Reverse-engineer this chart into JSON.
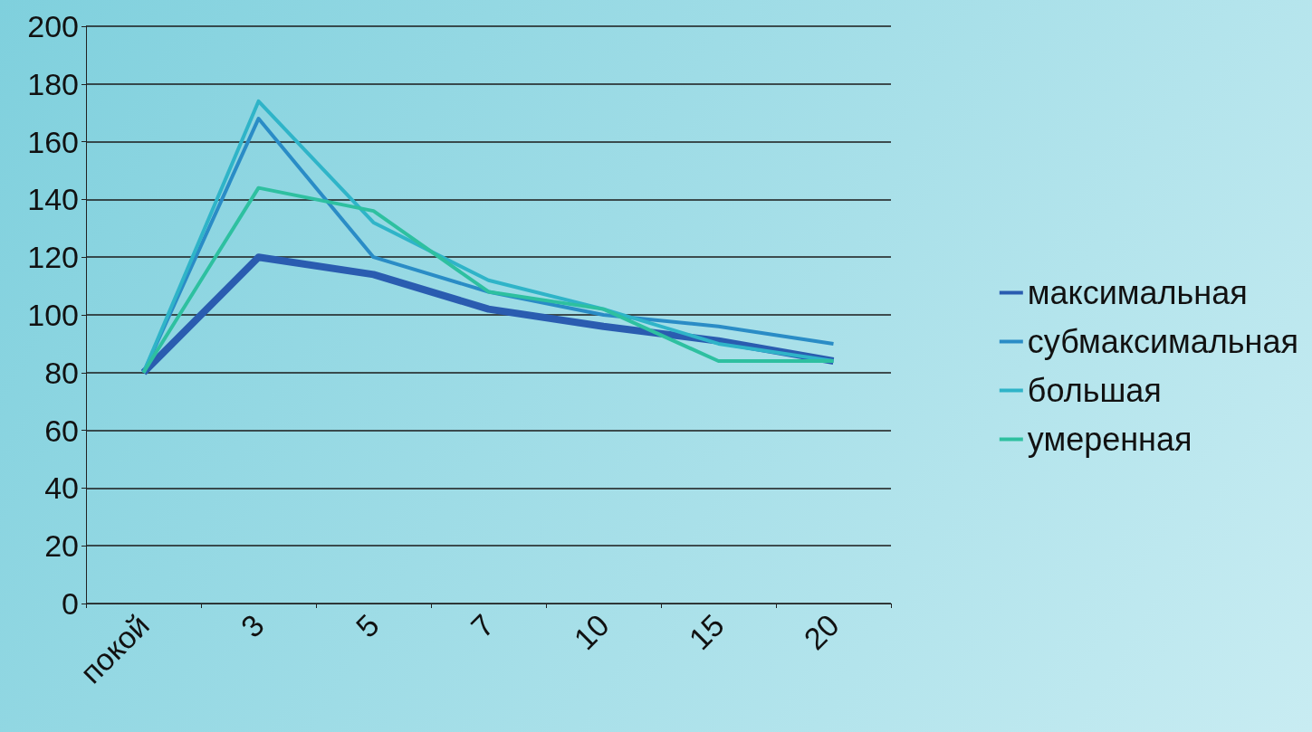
{
  "chart_data": {
    "type": "line",
    "categories": [
      "покой",
      "3",
      "5",
      "7",
      "10",
      "15",
      "20"
    ],
    "series": [
      {
        "name": "максимальная",
        "color": "#2a5cb0",
        "values": [
          80,
          120,
          114,
          102,
          96,
          91,
          84
        ]
      },
      {
        "name": "субмаксимальная",
        "color": "#2a8cc6",
        "values": [
          80,
          168,
          120,
          108,
          100,
          96,
          90
        ]
      },
      {
        "name": "большая",
        "color": "#2fb4c8",
        "values": [
          80,
          174,
          132,
          112,
          102,
          90,
          84
        ]
      },
      {
        "name": "умеренная",
        "color": "#2ec0a0",
        "values": [
          80,
          144,
          136,
          108,
          102,
          84,
          84
        ]
      }
    ],
    "ylim": [
      0,
      200
    ],
    "yticks": [
      0,
      20,
      40,
      60,
      80,
      100,
      120,
      140,
      160,
      180,
      200
    ],
    "grid": "y",
    "legend": "right",
    "marker": "none"
  }
}
